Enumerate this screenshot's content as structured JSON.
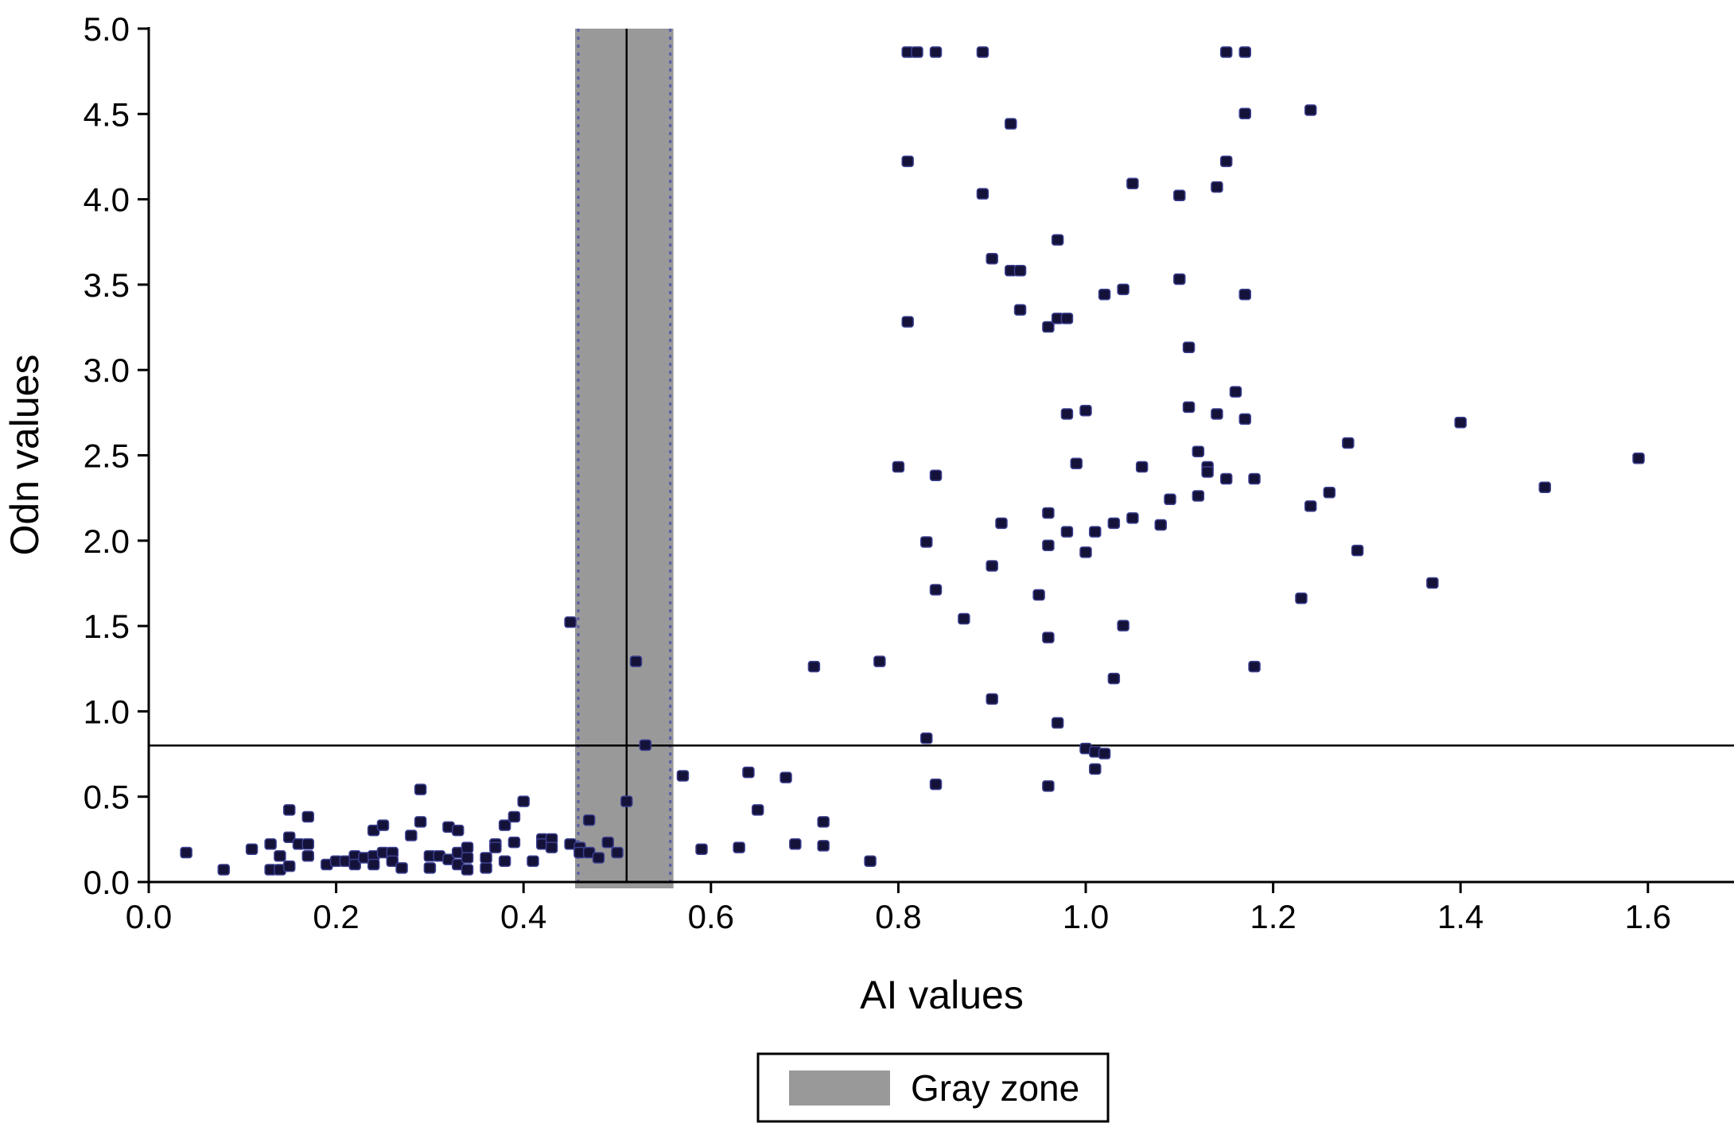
{
  "chart_data": {
    "type": "scatter",
    "title": "",
    "xlabel": "AI values",
    "ylabel": "Odn values",
    "xlim": [
      0.0,
      1.7
    ],
    "ylim": [
      0.0,
      5.0
    ],
    "x_ticks": [
      "0.0",
      "0.2",
      "0.4",
      "0.6",
      "0.8",
      "1.0",
      "1.2",
      "1.4",
      "1.6"
    ],
    "y_ticks": [
      "0.0",
      "0.5",
      "1.0",
      "1.5",
      "2.0",
      "2.5",
      "3.0",
      "3.5",
      "4.0",
      "4.5",
      "5.0"
    ],
    "grid": false,
    "legend": {
      "position": "bottom-center",
      "entries": [
        "Gray zone"
      ]
    },
    "gray_zone": {
      "x_start": 0.455,
      "x_end": 0.56,
      "color": "#999999"
    },
    "reference_lines": {
      "vertical_x": 0.51,
      "horizontal_y": 0.8
    },
    "point_color": "#15123a",
    "zone_color": "#999999",
    "points": [
      [
        0.04,
        0.17
      ],
      [
        0.08,
        0.07
      ],
      [
        0.11,
        0.19
      ],
      [
        0.13,
        0.22
      ],
      [
        0.13,
        0.07
      ],
      [
        0.14,
        0.15
      ],
      [
        0.14,
        0.07
      ],
      [
        0.15,
        0.26
      ],
      [
        0.15,
        0.42
      ],
      [
        0.15,
        0.09
      ],
      [
        0.16,
        0.22
      ],
      [
        0.17,
        0.15
      ],
      [
        0.17,
        0.22
      ],
      [
        0.17,
        0.38
      ],
      [
        0.19,
        0.1
      ],
      [
        0.2,
        0.12
      ],
      [
        0.21,
        0.12
      ],
      [
        0.22,
        0.15
      ],
      [
        0.22,
        0.1
      ],
      [
        0.23,
        0.14
      ],
      [
        0.24,
        0.3
      ],
      [
        0.24,
        0.15
      ],
      [
        0.24,
        0.1
      ],
      [
        0.25,
        0.33
      ],
      [
        0.25,
        0.17
      ],
      [
        0.26,
        0.17
      ],
      [
        0.26,
        0.12
      ],
      [
        0.27,
        0.08
      ],
      [
        0.28,
        0.27
      ],
      [
        0.29,
        0.35
      ],
      [
        0.29,
        0.54
      ],
      [
        0.3,
        0.15
      ],
      [
        0.3,
        0.08
      ],
      [
        0.31,
        0.15
      ],
      [
        0.32,
        0.32
      ],
      [
        0.32,
        0.13
      ],
      [
        0.33,
        0.3
      ],
      [
        0.33,
        0.17
      ],
      [
        0.33,
        0.1
      ],
      [
        0.34,
        0.2
      ],
      [
        0.34,
        0.14
      ],
      [
        0.34,
        0.07
      ],
      [
        0.36,
        0.08
      ],
      [
        0.36,
        0.14
      ],
      [
        0.37,
        0.22
      ],
      [
        0.37,
        0.2
      ],
      [
        0.38,
        0.33
      ],
      [
        0.38,
        0.12
      ],
      [
        0.39,
        0.23
      ],
      [
        0.39,
        0.38
      ],
      [
        0.4,
        0.47
      ],
      [
        0.41,
        0.12
      ],
      [
        0.42,
        0.25
      ],
      [
        0.42,
        0.22
      ],
      [
        0.43,
        0.25
      ],
      [
        0.43,
        0.2
      ],
      [
        0.45,
        0.22
      ],
      [
        0.45,
        1.52
      ],
      [
        0.46,
        0.2
      ],
      [
        0.46,
        0.17
      ],
      [
        0.47,
        0.36
      ],
      [
        0.47,
        0.17
      ],
      [
        0.48,
        0.14
      ],
      [
        0.49,
        0.23
      ],
      [
        0.5,
        0.17
      ],
      [
        0.51,
        0.47
      ],
      [
        0.52,
        1.29
      ],
      [
        0.53,
        0.8
      ],
      [
        0.57,
        0.62
      ],
      [
        0.59,
        0.19
      ],
      [
        0.63,
        0.2
      ],
      [
        0.64,
        0.64
      ],
      [
        0.65,
        0.42
      ],
      [
        0.68,
        0.61
      ],
      [
        0.69,
        0.22
      ],
      [
        0.71,
        1.26
      ],
      [
        0.72,
        0.35
      ],
      [
        0.72,
        0.21
      ],
      [
        0.77,
        0.12
      ],
      [
        0.78,
        1.29
      ],
      [
        0.8,
        2.43
      ],
      [
        0.81,
        3.28
      ],
      [
        0.81,
        4.22
      ],
      [
        0.81,
        4.86
      ],
      [
        0.82,
        4.86
      ],
      [
        0.83,
        0.84
      ],
      [
        0.83,
        1.99
      ],
      [
        0.84,
        2.38
      ],
      [
        0.84,
        1.71
      ],
      [
        0.84,
        4.86
      ],
      [
        0.84,
        0.57
      ],
      [
        0.87,
        1.54
      ],
      [
        0.89,
        4.86
      ],
      [
        0.89,
        4.03
      ],
      [
        0.9,
        3.65
      ],
      [
        0.9,
        1.07
      ],
      [
        0.9,
        1.85
      ],
      [
        0.91,
        2.1
      ],
      [
        0.92,
        4.44
      ],
      [
        0.92,
        3.58
      ],
      [
        0.93,
        3.58
      ],
      [
        0.93,
        3.35
      ],
      [
        0.95,
        1.68
      ],
      [
        0.96,
        3.25
      ],
      [
        0.96,
        2.16
      ],
      [
        0.96,
        1.97
      ],
      [
        0.96,
        1.43
      ],
      [
        0.96,
        0.56
      ],
      [
        0.97,
        3.76
      ],
      [
        0.97,
        3.3
      ],
      [
        0.97,
        0.93
      ],
      [
        0.98,
        2.74
      ],
      [
        0.98,
        2.05
      ],
      [
        0.98,
        3.3
      ],
      [
        0.99,
        2.45
      ],
      [
        1.0,
        2.76
      ],
      [
        1.0,
        0.78
      ],
      [
        1.0,
        1.93
      ],
      [
        1.01,
        2.05
      ],
      [
        1.01,
        0.66
      ],
      [
        1.01,
        0.76
      ],
      [
        1.02,
        0.75
      ],
      [
        1.02,
        3.44
      ],
      [
        1.03,
        2.1
      ],
      [
        1.03,
        1.19
      ],
      [
        1.04,
        3.47
      ],
      [
        1.04,
        1.5
      ],
      [
        1.05,
        4.09
      ],
      [
        1.05,
        2.13
      ],
      [
        1.06,
        2.43
      ],
      [
        1.08,
        2.09
      ],
      [
        1.09,
        2.24
      ],
      [
        1.1,
        3.53
      ],
      [
        1.1,
        4.02
      ],
      [
        1.11,
        3.13
      ],
      [
        1.11,
        2.78
      ],
      [
        1.12,
        2.26
      ],
      [
        1.12,
        2.52
      ],
      [
        1.13,
        2.43
      ],
      [
        1.13,
        2.4
      ],
      [
        1.14,
        4.07
      ],
      [
        1.14,
        2.74
      ],
      [
        1.15,
        4.22
      ],
      [
        1.15,
        4.86
      ],
      [
        1.15,
        2.36
      ],
      [
        1.16,
        2.87
      ],
      [
        1.17,
        3.44
      ],
      [
        1.17,
        2.71
      ],
      [
        1.17,
        4.5
      ],
      [
        1.17,
        4.86
      ],
      [
        1.18,
        2.36
      ],
      [
        1.18,
        1.26
      ],
      [
        1.23,
        1.66
      ],
      [
        1.24,
        4.52
      ],
      [
        1.24,
        2.2
      ],
      [
        1.26,
        2.28
      ],
      [
        1.28,
        2.57
      ],
      [
        1.29,
        1.94
      ],
      [
        1.37,
        1.75
      ],
      [
        1.4,
        2.69
      ],
      [
        1.49,
        2.31
      ],
      [
        1.59,
        2.48
      ]
    ]
  }
}
